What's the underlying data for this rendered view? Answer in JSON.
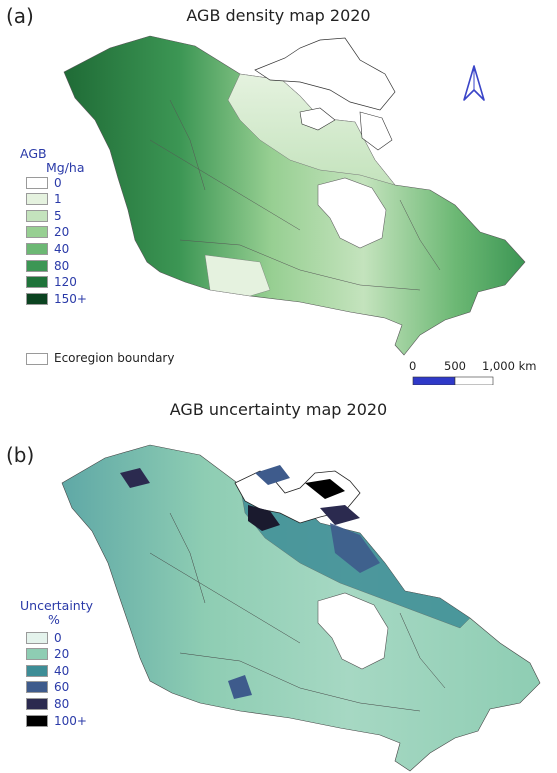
{
  "panel_a": {
    "letter": "(a)",
    "title": "AGB density map 2020",
    "legend_title": "AGB",
    "legend_unit": "Mg/ha",
    "legend": [
      {
        "label": "0",
        "color": "#ffffff"
      },
      {
        "label": "1",
        "color": "#e5f2df"
      },
      {
        "label": "5",
        "color": "#c4e3bd"
      },
      {
        "label": "20",
        "color": "#97cf92"
      },
      {
        "label": "40",
        "color": "#6cb874"
      },
      {
        "label": "80",
        "color": "#3c9654"
      },
      {
        "label": "120",
        "color": "#1f733a"
      },
      {
        "label": "150+",
        "color": "#0b4320"
      }
    ],
    "ecoregion_label": "Ecoregion boundary",
    "scale": {
      "labels": [
        "0",
        "500",
        "1,000 km"
      ],
      "fill_color": "#2f39c8"
    },
    "north_arrow": "north-arrow-icon"
  },
  "panel_b": {
    "letter": "(b)",
    "title": "AGB uncertainty map 2020",
    "legend_title": "Uncertainty",
    "legend_unit": "%",
    "legend": [
      {
        "label": "0",
        "color": "#e4f3ec"
      },
      {
        "label": "20",
        "color": "#8ecdb3"
      },
      {
        "label": "40",
        "color": "#3d8d96"
      },
      {
        "label": "60",
        "color": "#3e5b8c"
      },
      {
        "label": "80",
        "color": "#2b2a4f"
      },
      {
        "label": "100+",
        "color": "#000000"
      }
    ]
  }
}
